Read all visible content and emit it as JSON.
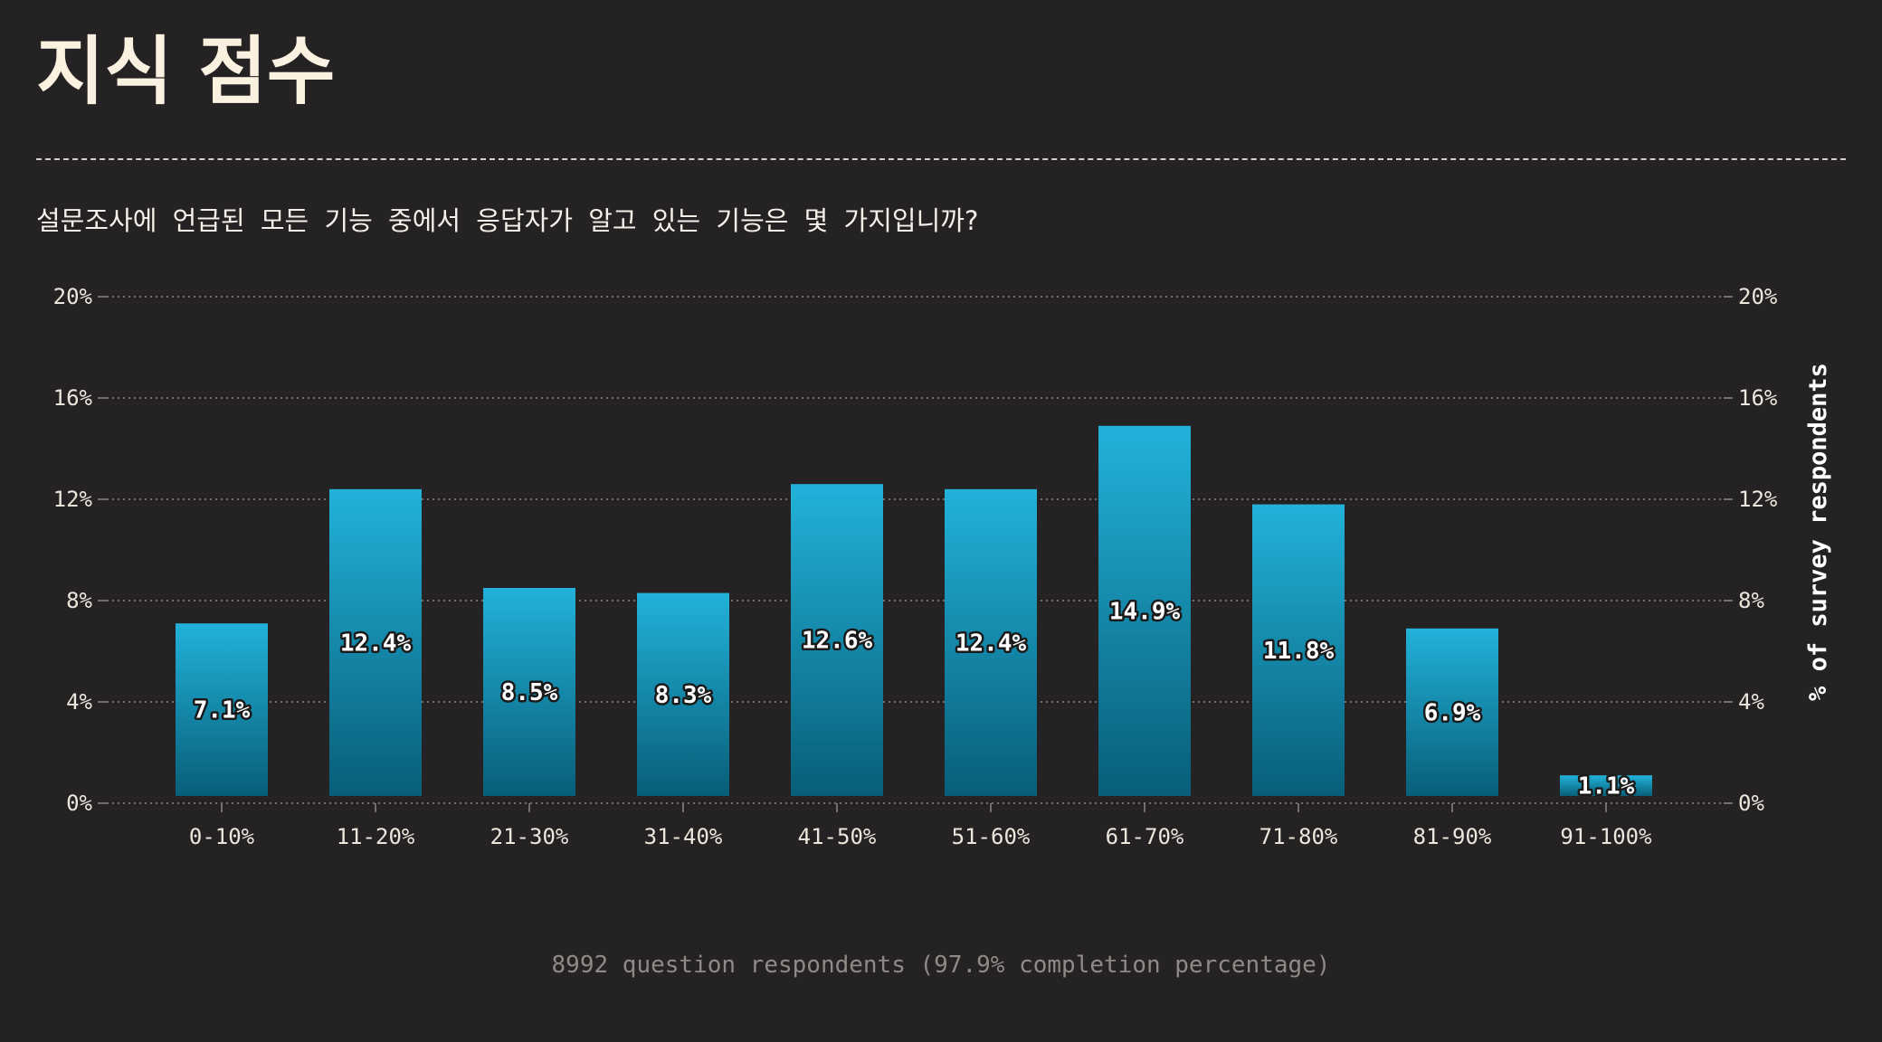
{
  "title": "지식 점수",
  "question": "설문조사에 언급된 모든 기능 중에서 응답자가 알고 있는 기능은 몇 가지입니까?",
  "footer": "8992 question respondents (97.9% completion percentage)",
  "colors": {
    "background": "#252223",
    "bar_top": "#22b2da",
    "bar_bottom": "#085e78",
    "title": "#fbf1e0"
  },
  "chart_data": {
    "type": "bar",
    "categories": [
      "0-10%",
      "11-20%",
      "21-30%",
      "31-40%",
      "41-50%",
      "51-60%",
      "61-70%",
      "71-80%",
      "81-90%",
      "91-100%"
    ],
    "values": [
      7.1,
      12.4,
      8.5,
      8.3,
      12.6,
      12.4,
      14.9,
      11.8,
      6.9,
      1.1
    ],
    "value_labels": [
      "7.1%",
      "12.4%",
      "8.5%",
      "8.3%",
      "12.6%",
      "12.4%",
      "14.9%",
      "11.8%",
      "6.9%",
      "1.1%"
    ],
    "ylabel": "% of survey respondents",
    "ylim": [
      0,
      20
    ],
    "yticks": [
      0,
      4,
      8,
      12,
      16,
      20
    ],
    "ytick_labels": [
      "0%",
      "4%",
      "8%",
      "12%",
      "16%",
      "20%"
    ],
    "grid": true,
    "y_axis_sides": "both"
  }
}
